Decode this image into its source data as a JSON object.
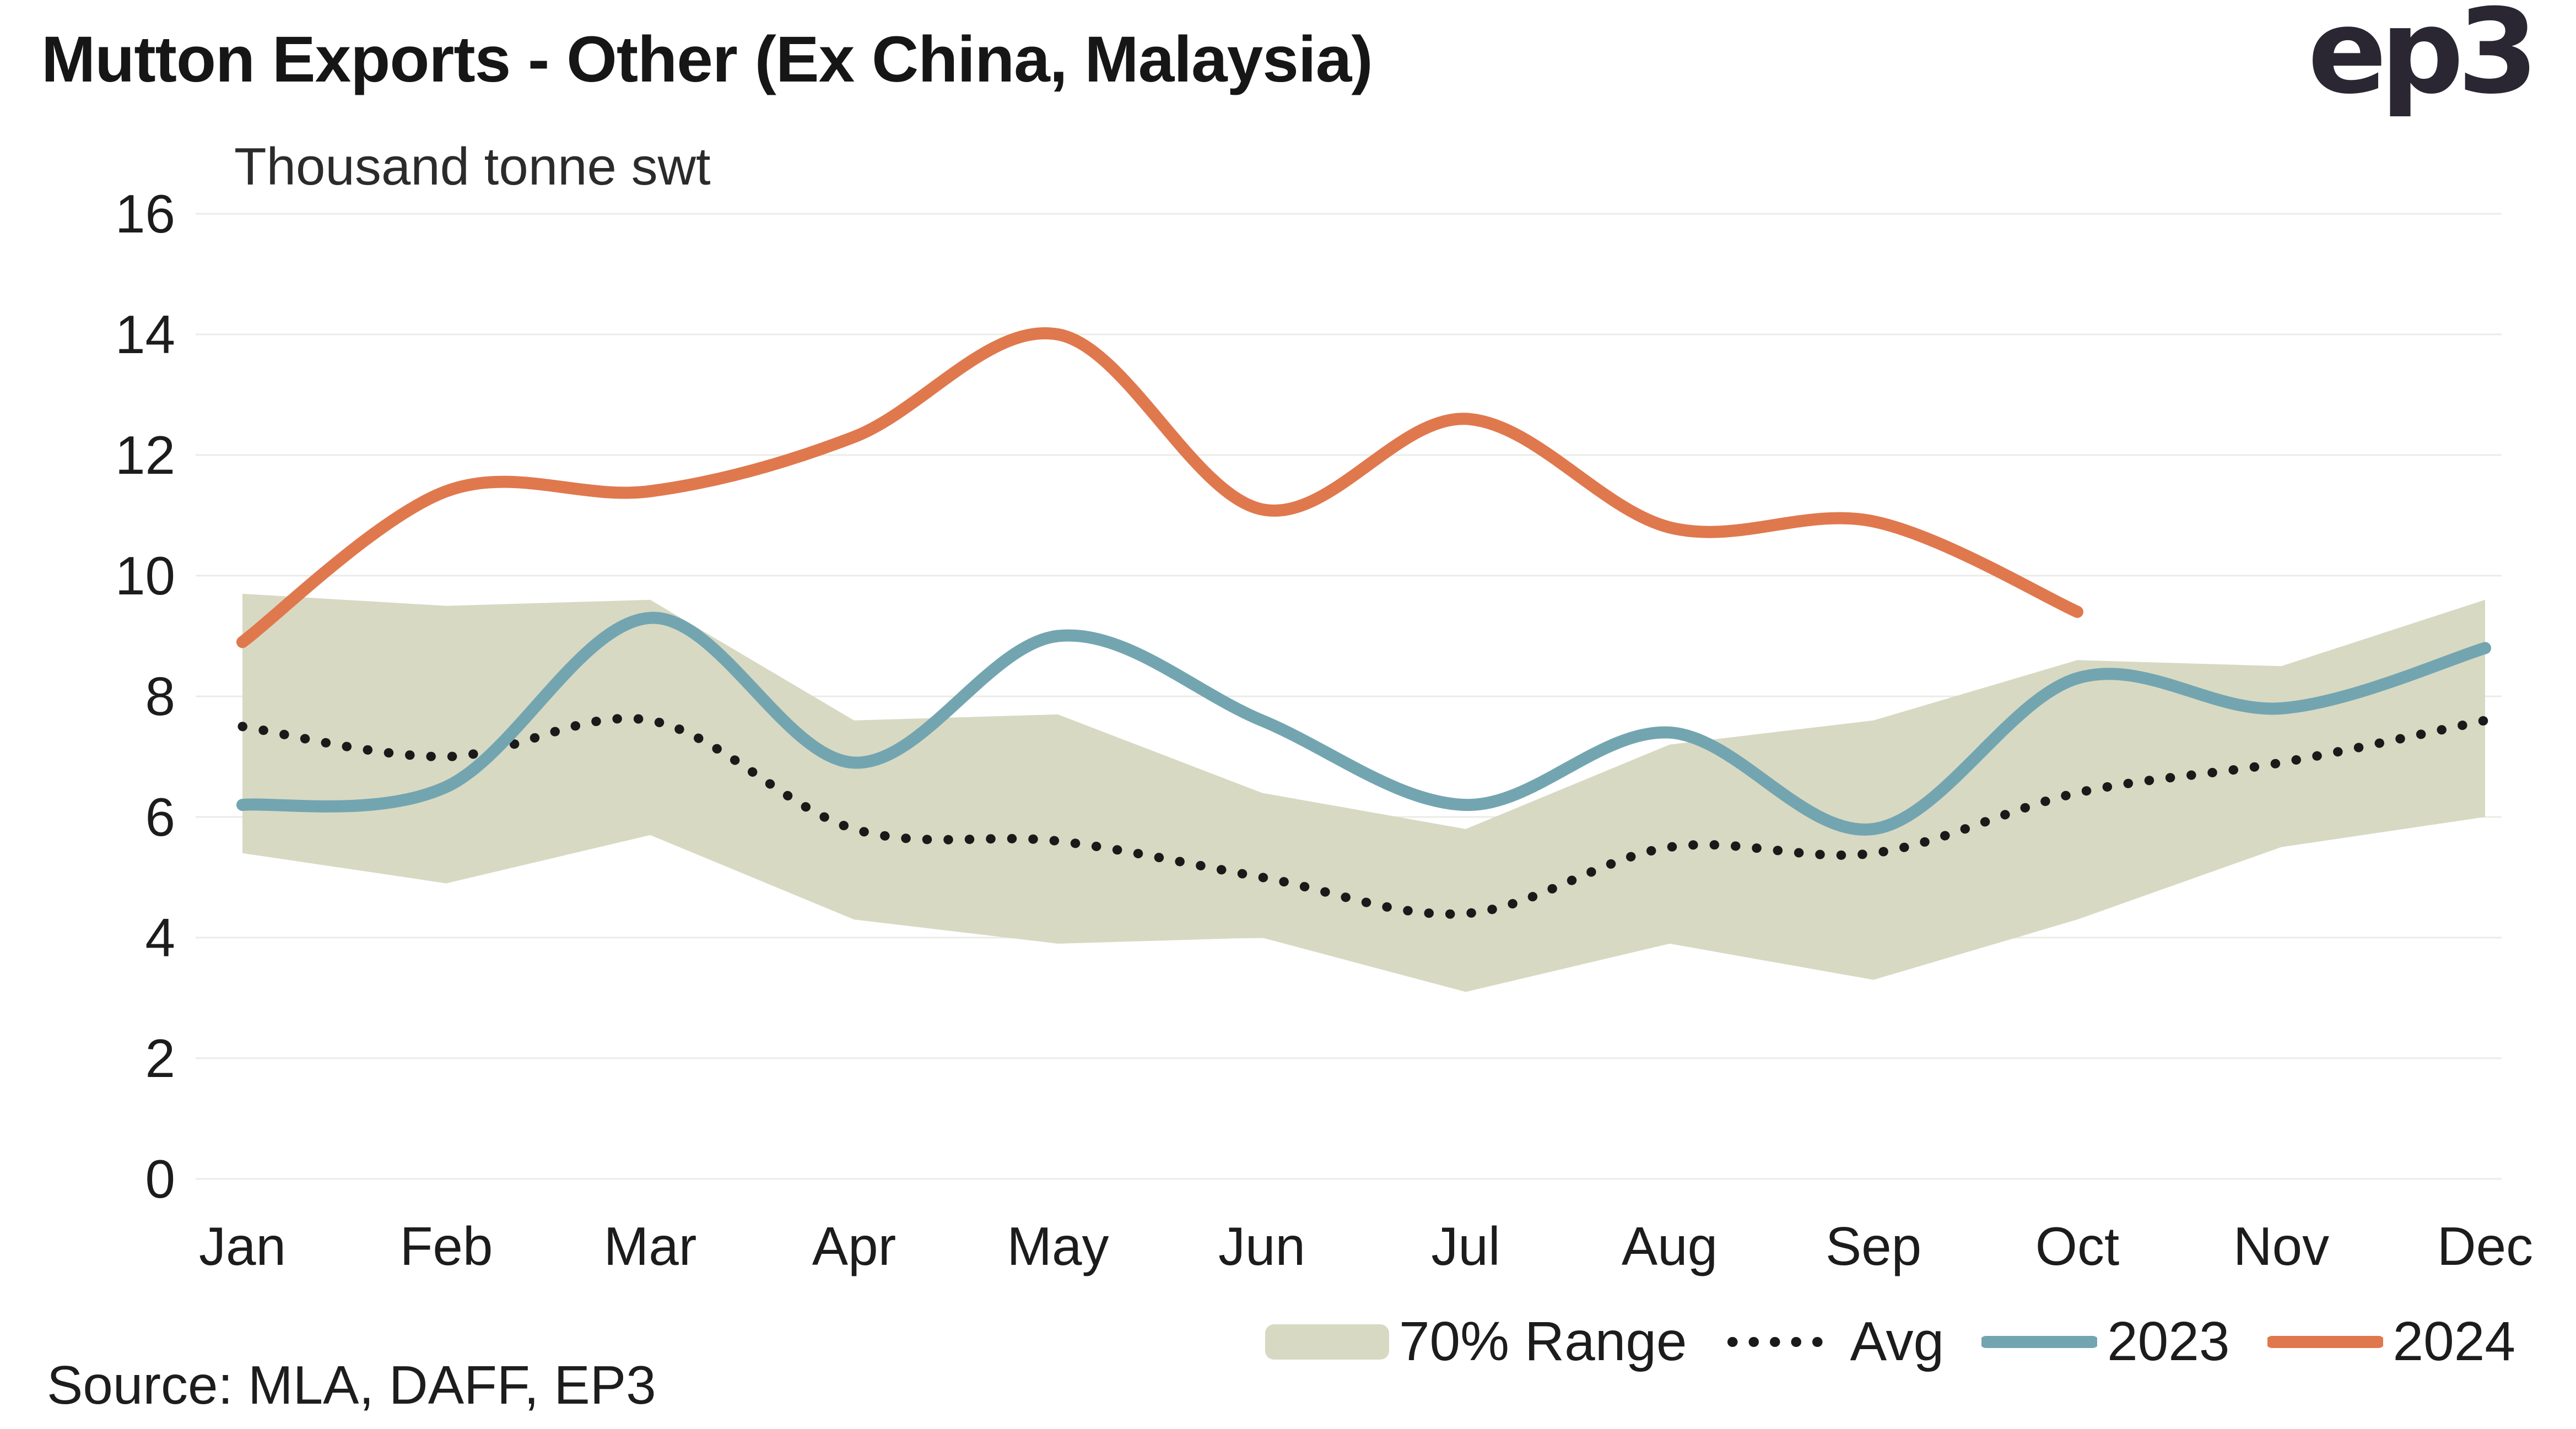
{
  "header": {
    "title": "Mutton Exports - Other (Ex China, Malaysia)",
    "logo_text": "ep3"
  },
  "chart": {
    "source": "Source: MLA, DAFF, EP3"
  },
  "colors": {
    "band": "#d8d9c2",
    "avg": "#1a1a1a",
    "y2023": "#73a5b1",
    "y2024": "#e0784e",
    "grid": "#ebebe7",
    "text": "#1c1c1c"
  },
  "chart_data": {
    "type": "line",
    "title": "Mutton Exports - Other (Ex China, Malaysia)",
    "ylabel": "Thousand tonne swt",
    "xlabel": "",
    "ylim": [
      0,
      16
    ],
    "ytick_step": 2,
    "grid": true,
    "legend_position": "bottom",
    "categories": [
      "Jan",
      "Feb",
      "Mar",
      "Apr",
      "May",
      "Jun",
      "Jul",
      "Aug",
      "Sep",
      "Oct",
      "Nov",
      "Dec"
    ],
    "band": {
      "name": "70% Range",
      "color": "#d8d9c2",
      "upper": [
        9.7,
        9.5,
        9.6,
        7.6,
        7.7,
        6.4,
        5.8,
        7.2,
        7.6,
        8.6,
        8.5,
        9.6
      ],
      "lower": [
        5.4,
        4.9,
        5.7,
        4.3,
        3.9,
        4.0,
        3.1,
        3.9,
        3.3,
        4.3,
        5.5,
        6.0
      ]
    },
    "series": [
      {
        "name": "Avg",
        "style": "dotted",
        "color": "#1a1a1a",
        "values": [
          7.5,
          7.0,
          7.6,
          5.8,
          5.6,
          5.0,
          4.4,
          5.5,
          5.4,
          6.4,
          6.9,
          7.6
        ]
      },
      {
        "name": "2023",
        "style": "solid",
        "color": "#73a5b1",
        "values": [
          6.2,
          6.5,
          9.3,
          6.9,
          9.0,
          7.6,
          6.2,
          7.4,
          5.8,
          8.3,
          7.8,
          8.8
        ]
      },
      {
        "name": "2024",
        "style": "solid",
        "color": "#e0784e",
        "values": [
          8.9,
          11.4,
          11.4,
          12.3,
          14.0,
          11.1,
          12.6,
          10.8,
          10.9,
          9.4,
          null,
          null
        ]
      }
    ]
  }
}
